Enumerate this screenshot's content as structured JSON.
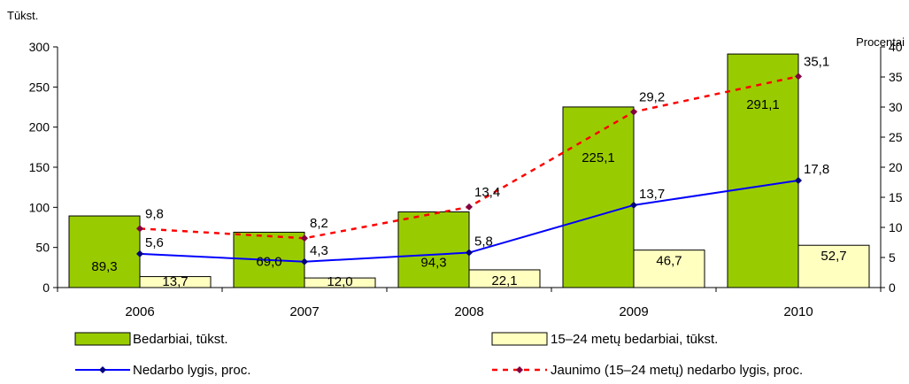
{
  "chart_data": {
    "type": "bar",
    "categories": [
      "2006",
      "2007",
      "2008",
      "2009",
      "2010"
    ],
    "left_axis": {
      "unit_label": "Tūkst.",
      "ylim": [
        0,
        300
      ],
      "ticks": [
        "0",
        "50",
        "100",
        "150",
        "200",
        "250",
        "300"
      ]
    },
    "right_axis": {
      "unit_label": "Procentai",
      "ylim": [
        0,
        40
      ],
      "ticks": [
        "0",
        "5",
        "10",
        "15",
        "20",
        "25",
        "30",
        "35",
        "40"
      ]
    },
    "grid": false,
    "legend_position": "bottom",
    "series": [
      {
        "name": "Bedarbiai, tūkst.",
        "type": "bar",
        "axis": "left",
        "color": "#99cc00",
        "values": [
          89.3,
          69.0,
          94.3,
          225.1,
          291.1
        ],
        "labels": [
          "89,3",
          "69,0",
          "94,3",
          "225,1",
          "291,1"
        ]
      },
      {
        "name": "15–24 metų bedarbiai, tūkst.",
        "type": "bar",
        "axis": "left",
        "color": "#ffffc0",
        "values": [
          13.7,
          12.0,
          22.1,
          46.7,
          52.7
        ],
        "labels": [
          "13,7",
          "12,0",
          "22,1",
          "46,7",
          "52,7"
        ]
      },
      {
        "name": "Nedarbo lygis, proc.",
        "type": "line",
        "axis": "right",
        "color": "#0000ff",
        "marker_color": "#000080",
        "values": [
          5.6,
          4.3,
          5.8,
          13.7,
          17.8
        ],
        "labels": [
          "5,6",
          "4,3",
          "5,8",
          "13,7",
          "17,8"
        ]
      },
      {
        "name": "Jaunimo (15–24 metų) nedarbo lygis, proc.",
        "type": "line",
        "axis": "right",
        "color": "#ff0000",
        "marker_color": "#800040",
        "values": [
          9.8,
          8.2,
          13.4,
          29.2,
          35.1
        ],
        "labels": [
          "9,8",
          "8,2",
          "13,4",
          "29,2",
          "35,1"
        ]
      }
    ]
  }
}
